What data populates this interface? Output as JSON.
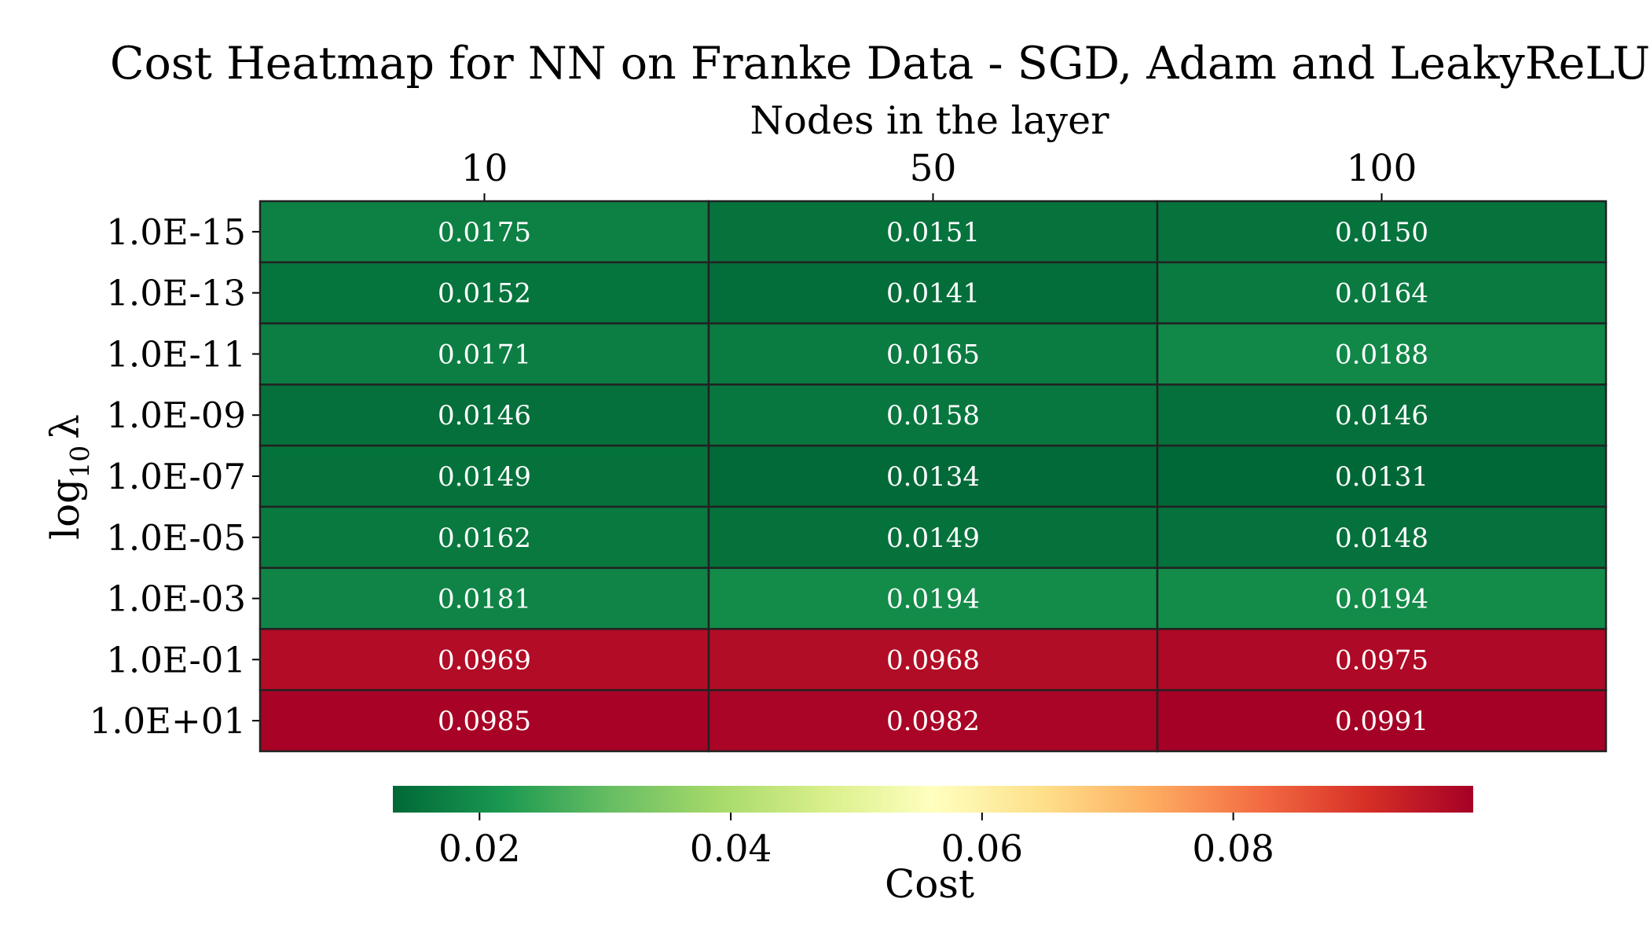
{
  "chart_data": {
    "type": "heatmap",
    "title": "Cost Heatmap for NN on Franke Data - SGD, Adam and LeakyReLU",
    "xlabel": "Nodes in the layer",
    "ylabel_parts": {
      "base": "log",
      "subscript": "10",
      "symbol": "λ"
    },
    "x_position": "top",
    "columns": [
      "10",
      "50",
      "100"
    ],
    "rows": [
      "1.0E-15",
      "1.0E-13",
      "1.0E-11",
      "1.0E-09",
      "1.0E-07",
      "1.0E-05",
      "1.0E-03",
      "1.0E-01",
      "1.0E+01"
    ],
    "values": [
      [
        0.0175,
        0.0151,
        0.015
      ],
      [
        0.0152,
        0.0141,
        0.0164
      ],
      [
        0.0171,
        0.0165,
        0.0188
      ],
      [
        0.0146,
        0.0158,
        0.0146
      ],
      [
        0.0149,
        0.0134,
        0.0131
      ],
      [
        0.0162,
        0.0149,
        0.0148
      ],
      [
        0.0181,
        0.0194,
        0.0194
      ],
      [
        0.0969,
        0.0968,
        0.0975
      ],
      [
        0.0985,
        0.0982,
        0.0991
      ]
    ],
    "cell_labels": [
      [
        "0.0175",
        "0.0151",
        "0.0150"
      ],
      [
        "0.0152",
        "0.0141",
        "0.0164"
      ],
      [
        "0.0171",
        "0.0165",
        "0.0188"
      ],
      [
        "0.0146",
        "0.0158",
        "0.0146"
      ],
      [
        "0.0149",
        "0.0134",
        "0.0131"
      ],
      [
        "0.0162",
        "0.0149",
        "0.0148"
      ],
      [
        "0.0181",
        "0.0194",
        "0.0194"
      ],
      [
        "0.0969",
        "0.0968",
        "0.0975"
      ],
      [
        "0.0985",
        "0.0982",
        "0.0991"
      ]
    ],
    "colormap": "RdYlGn_r",
    "colormap_stops": [
      "#006837",
      "#1a9850",
      "#66bd63",
      "#a6d96a",
      "#d9ef8b",
      "#ffffbf",
      "#fee08b",
      "#fdae61",
      "#f46d43",
      "#d73027",
      "#a50026"
    ],
    "colorbar": {
      "label": "Cost",
      "range": [
        0.0131,
        0.0991
      ],
      "ticks": [
        0.02,
        0.04,
        0.06,
        0.08
      ],
      "tick_labels": [
        "0.02",
        "0.04",
        "0.06",
        "0.08"
      ],
      "orientation": "horizontal",
      "position": "bottom"
    }
  }
}
